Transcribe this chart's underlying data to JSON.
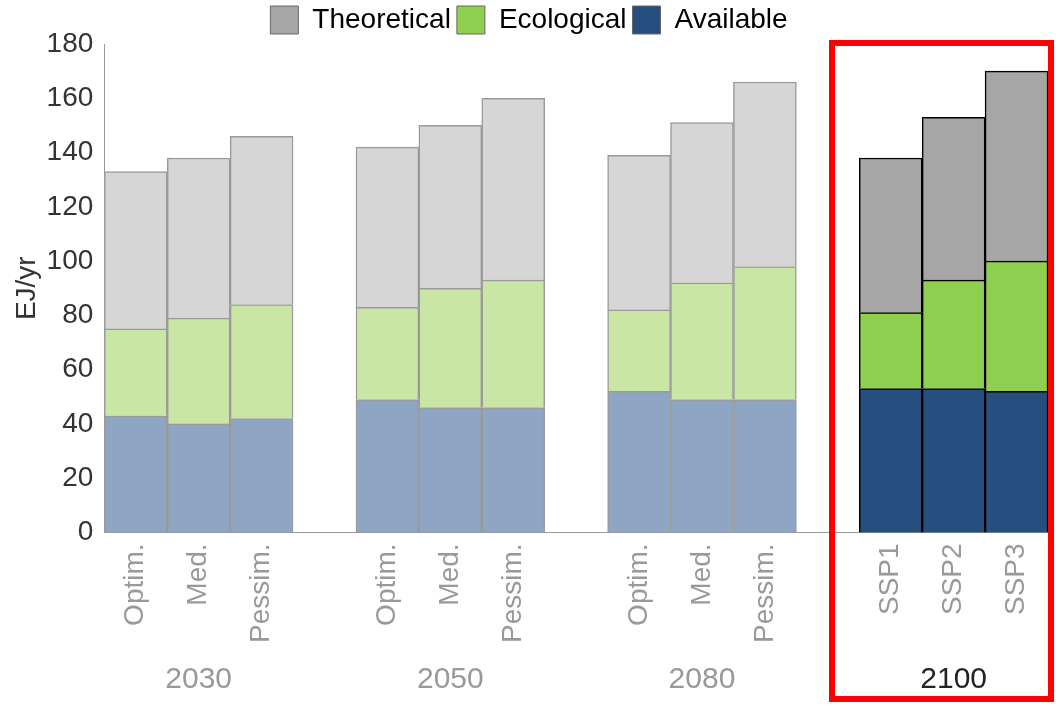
{
  "chart_data": {
    "type": "bar",
    "stacked": true,
    "ylabel": "EJ/yr",
    "categories": [
      "Optim.",
      "Med.",
      "Pessim.",
      null,
      "Optim.",
      "Med.",
      "Pessim.",
      null,
      "Optim.",
      "Med.",
      "Pessim.",
      null,
      "SSP1",
      "SSP2",
      "SSP3"
    ],
    "series": [
      {
        "name": "Available",
        "color": "#264f80",
        "colors": [
          "#8ea5c4",
          "#8ea5c4",
          "#8ea5c4",
          "#8ea5c4",
          "#8ea5c4",
          "#8ea5c4",
          "#8ea5c4",
          "#8ea5c4",
          "#8ea5c4",
          "#8ea5c4",
          "#8ea5c4",
          "#8ea5c4",
          "#264f80",
          "#264f80",
          "#264f80"
        ],
        "values": [
          43,
          40,
          42,
          null,
          49,
          46,
          46,
          null,
          52,
          49,
          49,
          null,
          53,
          53,
          52
        ]
      },
      {
        "name": "Ecological",
        "color": "#8fcf4f",
        "colors": [
          "#c9e6a5",
          "#c9e6a5",
          "#c9e6a5",
          "#c9e6a5",
          "#c9e6a5",
          "#c9e6a5",
          "#c9e6a5",
          "#c9e6a5",
          "#c9e6a5",
          "#c9e6a5",
          "#c9e6a5",
          "#c9e6a5",
          "#8fcf4f",
          "#8fcf4f",
          "#8fcf4f"
        ],
        "values": [
          32,
          39,
          42,
          null,
          34,
          44,
          47,
          null,
          30,
          43,
          49,
          null,
          28,
          40,
          48
        ]
      },
      {
        "name": "Theoretical",
        "color": "#a6a6a6",
        "colors": [
          "#d6d6d6",
          "#d6d6d6",
          "#d6d6d6",
          "#d6d6d6",
          "#d6d6d6",
          "#d6d6d6",
          "#d6d6d6",
          "#d6d6d6",
          "#d6d6d6",
          "#d6d6d6",
          "#d6d6d6",
          "#d6d6d6",
          "#a6a6a6",
          "#a6a6a6",
          "#a6a6a6"
        ],
        "values": [
          58,
          59,
          62,
          null,
          59,
          60,
          67,
          null,
          57,
          59,
          68,
          null,
          57,
          60,
          70
        ]
      }
    ],
    "ylim": [
      0,
      180
    ],
    "yticks": [
      0,
      20,
      40,
      60,
      80,
      100,
      120,
      140,
      160,
      180
    ],
    "legend": "top",
    "grid": false,
    "annotations": [
      "2030",
      "2050",
      "2080",
      "2100"
    ]
  }
}
